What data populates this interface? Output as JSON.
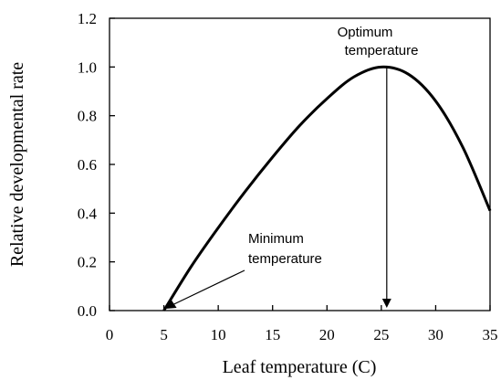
{
  "chart_data": {
    "type": "line",
    "title": "",
    "xlabel": "Leaf temperature (C)",
    "ylabel": "Relative developmental rate",
    "xlim": [
      0,
      35
    ],
    "ylim": [
      0,
      1.2
    ],
    "xticks": [
      "0",
      "5",
      "10",
      "15",
      "20",
      "25",
      "30",
      "35"
    ],
    "yticks": [
      "0.0",
      "0.2",
      "0.4",
      "0.6",
      "0.8",
      "1.0",
      "1.2"
    ],
    "grid": false,
    "legend": "none",
    "series": [
      {
        "x": [
          5,
          7.5,
          10,
          12.5,
          15,
          17.5,
          20,
          22.5,
          25,
          27.5,
          30,
          32.5,
          35
        ],
        "y": [
          0.0,
          0.18,
          0.34,
          0.49,
          0.63,
          0.76,
          0.87,
          0.96,
          1.0,
          0.97,
          0.86,
          0.67,
          0.41
        ]
      }
    ],
    "annotations": {
      "optimum": {
        "line1": "Optimum",
        "line2": "temperature",
        "x": 25.5,
        "y": 1.0
      },
      "minimum": {
        "line1": "Minimum",
        "line2": "temperature",
        "x": 5,
        "y": 0.0
      }
    }
  }
}
